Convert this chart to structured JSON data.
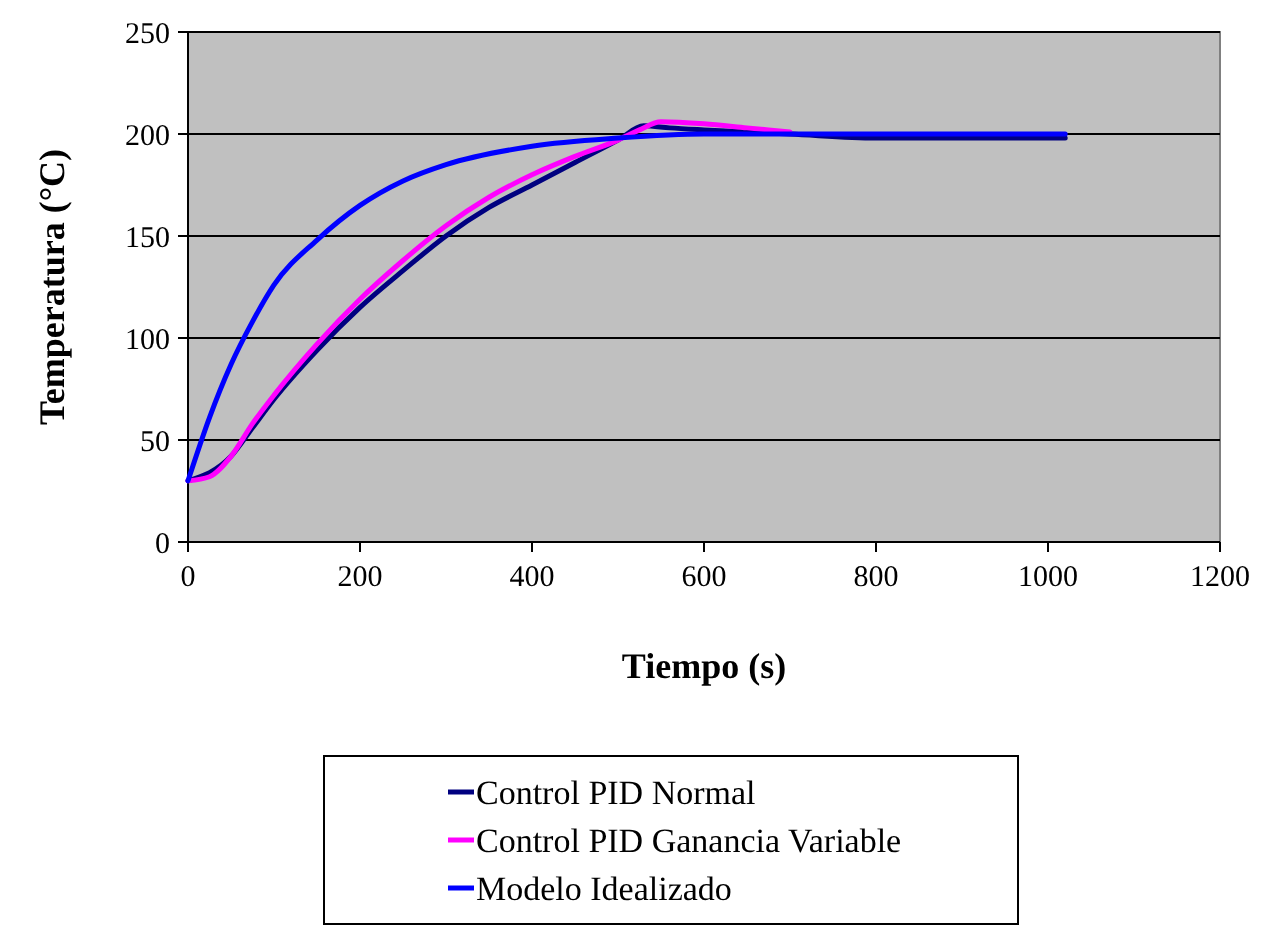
{
  "chart_data": {
    "type": "line",
    "xlabel": "Tiempo (s)",
    "ylabel": "Temperatura (°C)",
    "xlim": [
      0,
      1200
    ],
    "xticks": [
      0,
      200,
      400,
      600,
      800,
      1000,
      1200
    ],
    "ylim": [
      0,
      250
    ],
    "yticks": [
      0,
      50,
      100,
      150,
      200,
      250
    ],
    "grid": "y",
    "legend": "bottom",
    "marker": "none",
    "line_style": "solid",
    "series": [
      {
        "name": "Control PID Normal",
        "color": "#000080",
        "x": [
          0,
          50,
          75,
          100,
          150,
          200,
          250,
          300,
          350,
          400,
          450,
          500,
          530,
          560,
          600,
          700,
          800,
          1020
        ],
        "values": [
          30,
          42,
          56,
          70,
          94,
          115,
          133,
          150,
          164,
          175,
          186,
          197,
          204,
          203,
          202,
          200,
          198,
          198
        ]
      },
      {
        "name": "Control PID Ganancia Variable",
        "color": "#ff00ff",
        "x": [
          0,
          25,
          50,
          75,
          100,
          150,
          200,
          250,
          300,
          350,
          400,
          450,
          500,
          525,
          550,
          600,
          650,
          700
        ],
        "values": [
          30,
          32,
          42,
          58,
          72,
          97,
          119,
          138,
          155,
          169,
          180,
          189,
          197,
          202,
          206,
          205,
          203,
          201
        ]
      },
      {
        "name": "Modelo Idealizado",
        "color": "#0000ff",
        "x": [
          0,
          25,
          50,
          75,
          100,
          150,
          200,
          250,
          300,
          400,
          500,
          600,
          700,
          1020
        ],
        "values": [
          30,
          61,
          87,
          108,
          126,
          148,
          165,
          177,
          185,
          194,
          198,
          200,
          200,
          200
        ]
      }
    ]
  }
}
